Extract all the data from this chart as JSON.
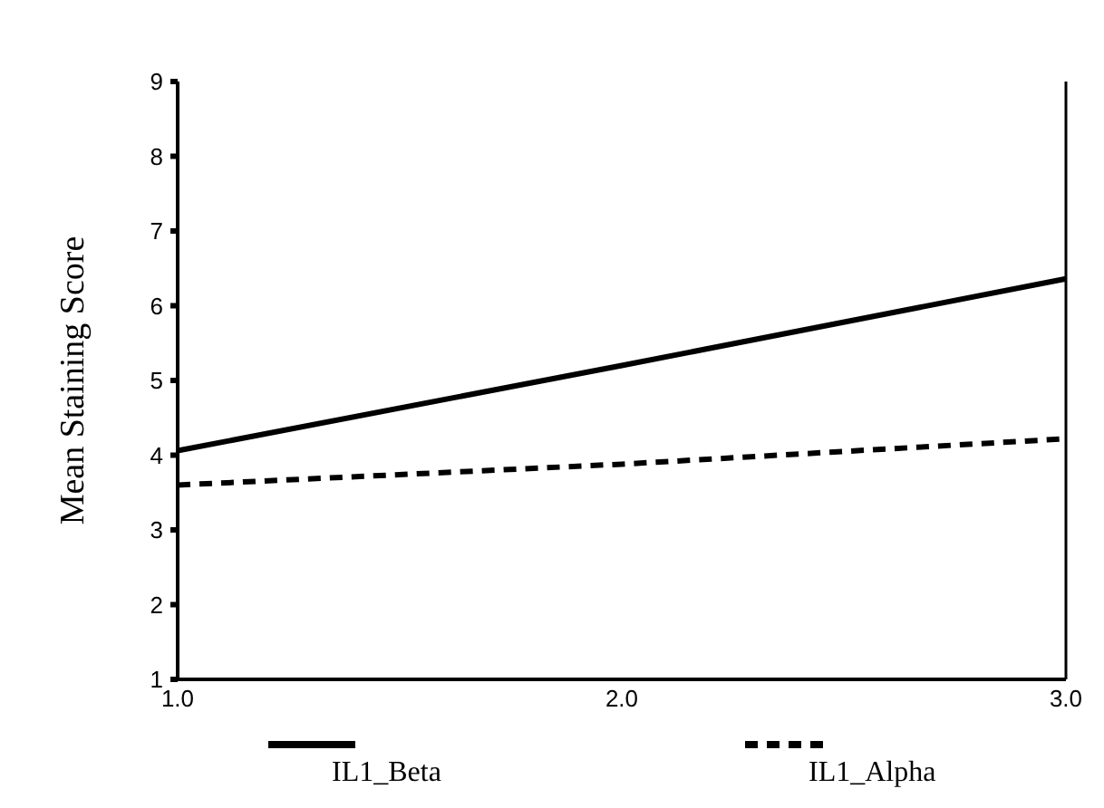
{
  "chart_data": {
    "type": "line",
    "ylabel": "Mean Staining Score",
    "x": [
      1,
      2,
      3
    ],
    "xlim": [
      1,
      3
    ],
    "xticks": [
      {
        "value": 1,
        "label": "1.0"
      },
      {
        "value": 2,
        "label": "2.0"
      },
      {
        "value": 3,
        "label": "3.0"
      }
    ],
    "ylim": [
      1,
      9
    ],
    "yticks": [
      1,
      2,
      3,
      4,
      5,
      6,
      7,
      8,
      9
    ],
    "legend": "bottom",
    "grid": false,
    "marker": "none",
    "series": [
      {
        "name": "IL1_Beta",
        "color": "#000000",
        "values": [
          4.06,
          5.2,
          6.36
        ],
        "line_style": "solid"
      },
      {
        "name": "IL1_Alpha",
        "color": "#000000",
        "values": [
          3.6,
          3.88,
          4.22
        ],
        "line_style": "dashed"
      }
    ]
  }
}
